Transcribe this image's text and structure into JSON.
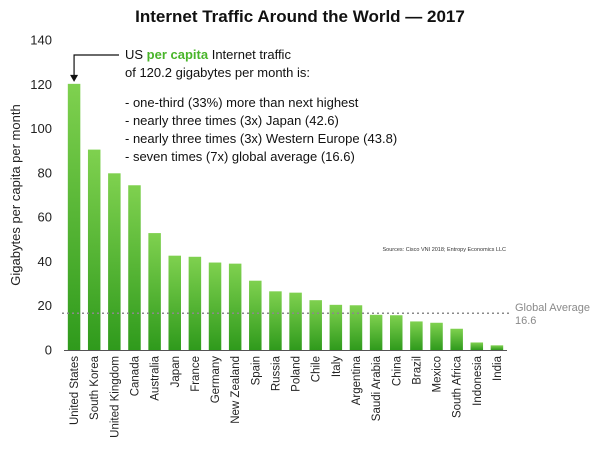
{
  "chart_data": {
    "type": "bar",
    "title": "Internet Traffic Around the World — 2017",
    "ylabel": "Gigabytes per capita per month",
    "xlabel": "",
    "ylim": [
      0,
      140
    ],
    "yticks": [
      0,
      20,
      40,
      60,
      80,
      100,
      120,
      140
    ],
    "grid": false,
    "categories": [
      "United States",
      "South Korea",
      "United Kingdom",
      "Canada",
      "Australia",
      "Japan",
      "France",
      "Germany",
      "New Zealand",
      "Spain",
      "Russia",
      "Poland",
      "Chile",
      "Italy",
      "Argentina",
      "Saudi Arabia",
      "China",
      "Brazil",
      "Mexico",
      "South Africa",
      "Indonesia",
      "India"
    ],
    "values": [
      120.2,
      90.5,
      79.8,
      74.4,
      52.8,
      42.6,
      42.1,
      39.5,
      39.0,
      31.3,
      26.5,
      25.9,
      22.5,
      20.4,
      20.2,
      15.9,
      15.7,
      12.9,
      12.3,
      9.6,
      3.4,
      2.1
    ],
    "reference_line": {
      "value": 16.6,
      "label": "Global Average",
      "value_label": "16.6"
    },
    "annotation": {
      "line1_prefix": "US ",
      "line1_highlight": "per capita",
      "line1_suffix": " Internet traffic",
      "line2": "of 120.2 gigabytes per month is:",
      "bullets": [
        "- one-third (33%) more than next highest",
        "- nearly three times (3x) Japan (42.6)",
        "- nearly three times (3x) Western Europe (43.8)",
        "- seven times (7x) global average (16.6)"
      ]
    },
    "source": "Sources: Cisco VNI 2018; Entropy Economics LLC"
  },
  "colors": {
    "bar_top": "#7fd14f",
    "bar_bottom": "#2f9a1c",
    "highlight": "#49b52a",
    "avg_line": "#8a8a8a"
  }
}
